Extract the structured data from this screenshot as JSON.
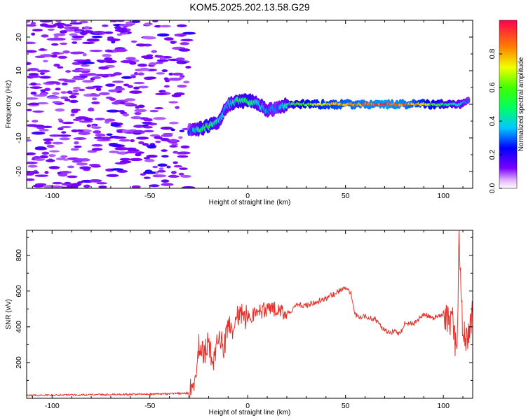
{
  "figure_title": "KOM5.2025.202.13.58.G29",
  "chart_data": [
    {
      "type": "heatmap",
      "xlabel": "Height of straight line (km)",
      "ylabel": "Frequency (Hz)",
      "xlim": [
        -113,
        115
      ],
      "ylim": [
        -25,
        25
      ],
      "x_ticks": [
        -100,
        -50,
        0,
        50,
        100
      ],
      "x_tick_labels": [
        "-100",
        "-50",
        "0",
        "50",
        "100"
      ],
      "y_ticks": [
        -20,
        -10,
        0,
        10,
        20
      ],
      "y_tick_labels": [
        "-20",
        "-10",
        "0",
        "10",
        "20"
      ],
      "colorbar": {
        "label": "Normalized spectral amplitude",
        "range": [
          0,
          1
        ],
        "ticks": [
          0,
          0.2,
          0.4,
          0.6,
          0.8
        ],
        "tick_labels": [
          "0.0",
          "0.2",
          "0.4",
          "0.6",
          "0.8"
        ],
        "colors": [
          "#ffffff",
          "#7a00ff",
          "#0000ff",
          "#00c8ff",
          "#00ff40",
          "#f0ff00",
          "#ff8000",
          "#ff0050"
        ]
      },
      "ridge": {
        "x": [
          -30,
          -25,
          -20,
          -15,
          -10,
          -5,
          0,
          5,
          10,
          15,
          20,
          30,
          40,
          50,
          60,
          70,
          80,
          90,
          100,
          108,
          113
        ],
        "freq": [
          -8,
          -7.5,
          -6.5,
          -5,
          0,
          1,
          1,
          0.5,
          -2,
          -1,
          0,
          0,
          0,
          0,
          0,
          0,
          0,
          0,
          0,
          0,
          1
        ],
        "amplitude": [
          0.25,
          0.45,
          0.55,
          0.4,
          0.35,
          0.5,
          0.55,
          0.4,
          0.35,
          0.3,
          0.45,
          0.7,
          0.78,
          0.85,
          0.9,
          0.95,
          0.9,
          0.75,
          0.55,
          0.4,
          0.3
        ]
      },
      "noise_region_x": [
        -113,
        -30
      ],
      "noise_amplitude": 0.08
    },
    {
      "type": "line",
      "xlabel": "Height of straight line (km)",
      "ylabel": "SNR (v/v)",
      "xlim": [
        -113,
        115
      ],
      "ylim": [
        0,
        940
      ],
      "x_ticks": [
        -100,
        -50,
        0,
        50,
        100
      ],
      "x_tick_labels": [
        "-100",
        "-50",
        "0",
        "50",
        "100"
      ],
      "y_ticks": [
        200,
        400,
        600,
        800
      ],
      "y_tick_labels": [
        "200",
        "400",
        "600",
        "800"
      ],
      "color": "#e8302a",
      "x": [
        -113,
        -100,
        -80,
        -60,
        -40,
        -30,
        -28,
        -26,
        -25,
        -22,
        -20,
        -18,
        -15,
        -12,
        -10,
        -8,
        -5,
        -2,
        0,
        5,
        10,
        15,
        20,
        25,
        30,
        35,
        40,
        45,
        50,
        53,
        55,
        58,
        60,
        65,
        70,
        75,
        78,
        80,
        85,
        90,
        95,
        100,
        105,
        107,
        108,
        110,
        112,
        115
      ],
      "y": [
        15,
        18,
        20,
        22,
        25,
        30,
        60,
        150,
        300,
        250,
        320,
        200,
        350,
        280,
        420,
        380,
        480,
        460,
        450,
        480,
        500,
        500,
        470,
        520,
        520,
        540,
        560,
        590,
        620,
        580,
        470,
        450,
        460,
        440,
        380,
        370,
        360,
        420,
        420,
        470,
        450,
        470,
        420,
        200,
        900,
        350,
        330,
        480
      ]
    }
  ]
}
